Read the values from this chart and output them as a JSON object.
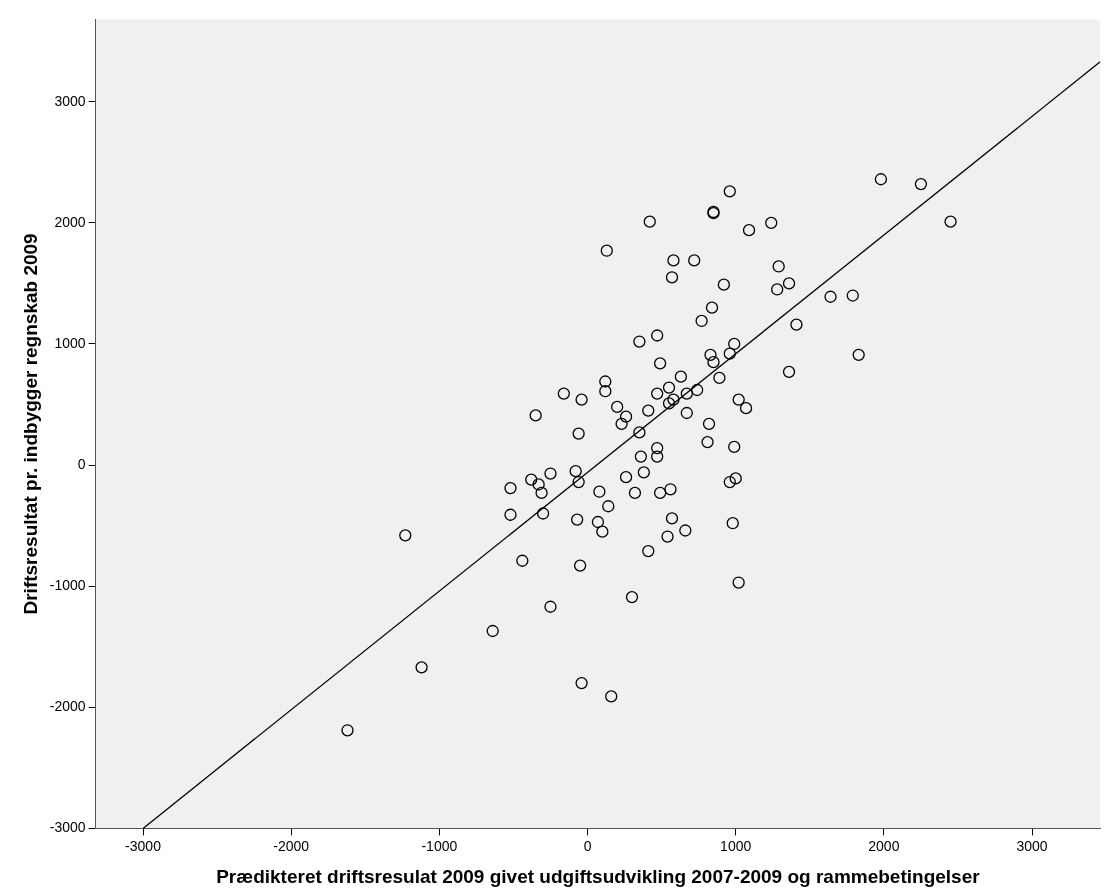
{
  "chart_data": {
    "type": "scatter",
    "xlabel": "Prædikteret driftsresulat 2009 givet udgiftsudvikling 2007-2009 og rammebetingelser",
    "ylabel": "Driftsresultat pr. indbygger regnskab 2009",
    "xlim": [
      -3320,
      3460
    ],
    "ylim": [
      -3000,
      3680
    ],
    "xticks": [
      -3000,
      -2000,
      -1000,
      0,
      1000,
      2000,
      3000
    ],
    "yticks": [
      -3000,
      -2000,
      -1000,
      0,
      1000,
      2000,
      3000
    ],
    "grid": false,
    "legend": false,
    "marker": "circle",
    "series": [
      {
        "color": "#000000",
        "x": [
          -1620,
          -1230,
          -1120,
          -640,
          -250,
          -40,
          -440,
          -50,
          -520,
          -300,
          -70,
          70,
          100,
          -520,
          -380,
          -330,
          -310,
          -250,
          -80,
          -60,
          80,
          -350,
          -160,
          -40,
          -60,
          1980,
          2250,
          2450,
          960,
          850,
          850,
          420,
          130,
          1090,
          1240,
          580,
          720,
          570,
          920,
          1290,
          1360,
          1280,
          1640,
          1790,
          1410,
          840,
          770,
          350,
          470,
          490,
          830,
          850,
          960,
          990,
          1830,
          1360,
          890,
          630,
          550,
          470,
          120,
          120,
          200,
          260,
          230,
          410,
          550,
          580,
          670,
          740,
          670,
          1020,
          1070,
          820,
          810,
          990,
          350,
          470,
          470,
          360,
          380,
          260,
          320,
          490,
          560,
          960,
          1000,
          140,
          570,
          660,
          540,
          980,
          410,
          1020,
          300,
          160
        ],
        "values": [
          -2190,
          -580,
          -1670,
          -1370,
          -1170,
          -1800,
          -790,
          -830,
          -410,
          -400,
          -450,
          -470,
          -550,
          -190,
          -120,
          -160,
          -230,
          -70,
          -50,
          -140,
          -220,
          410,
          590,
          540,
          260,
          2360,
          2320,
          2010,
          2260,
          2080,
          2090,
          2010,
          1770,
          1940,
          2000,
          1690,
          1690,
          1550,
          1490,
          1640,
          1500,
          1450,
          1390,
          1400,
          1160,
          1300,
          1190,
          1020,
          1070,
          840,
          910,
          850,
          920,
          1000,
          910,
          770,
          720,
          730,
          640,
          590,
          690,
          610,
          480,
          400,
          340,
          450,
          510,
          540,
          590,
          620,
          430,
          540,
          470,
          340,
          190,
          150,
          270,
          140,
          70,
          70,
          -60,
          -100,
          -230,
          -230,
          -200,
          -140,
          -110,
          -340,
          -440,
          -540,
          -590,
          -480,
          -710,
          -970,
          -1090,
          -1910
        ]
      },
      {
        "type": "line",
        "marker": "none",
        "line_style": "solid",
        "color": "#000000",
        "x": [
          -3000,
          3460
        ],
        "values": [
          -3000,
          3330
        ]
      }
    ]
  }
}
